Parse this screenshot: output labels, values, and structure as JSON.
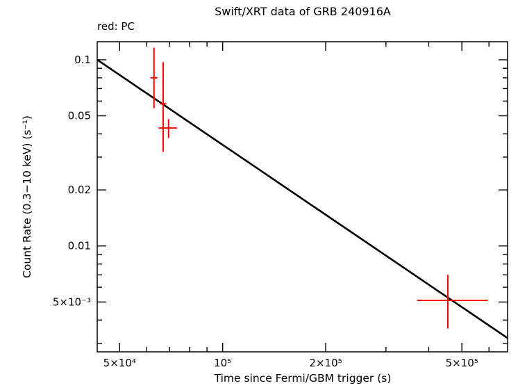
{
  "chart_data": {
    "type": "scatter",
    "title": "Swift/XRT data of GRB 240916A",
    "legend": "red: PC",
    "xlabel": "Time since Fermi/GBM trigger (s)",
    "ylabel": "Count Rate (0.3−10 keV) (s⁻¹)",
    "x_scale": "log",
    "y_scale": "log",
    "xlim": [
      43000,
      680000
    ],
    "ylim": [
      0.0027,
      0.125
    ],
    "grid": false,
    "legend_position": "top-left",
    "colors": {
      "data": "#ff0000",
      "fit": "#000000",
      "frame": "#000000"
    },
    "x_ticks": [
      {
        "value": 50000,
        "label": "5×10⁴"
      },
      {
        "value": 100000,
        "label": "10⁵"
      },
      {
        "value": 200000,
        "label": "2×10⁵"
      },
      {
        "value": 500000,
        "label": "5×10⁵"
      }
    ],
    "y_ticks": [
      {
        "value": 0.1,
        "label": "0.1"
      },
      {
        "value": 0.05,
        "label": "0.05"
      },
      {
        "value": 0.02,
        "label": "0.02"
      },
      {
        "value": 0.01,
        "label": "0.01"
      },
      {
        "value": 0.005,
        "label": "5×10⁻³"
      }
    ],
    "series": [
      {
        "name": "PC",
        "color": "#ff0000",
        "points": [
          {
            "x": 63000,
            "x_lo": 61500,
            "x_hi": 64500,
            "y": 0.08,
            "y_lo": 0.055,
            "y_hi": 0.116
          },
          {
            "x": 67000,
            "x_lo": 65500,
            "x_hi": 68500,
            "y": 0.058,
            "y_lo": 0.032,
            "y_hi": 0.097
          },
          {
            "x": 69500,
            "x_lo": 65000,
            "x_hi": 73500,
            "y": 0.043,
            "y_lo": 0.038,
            "y_hi": 0.048
          },
          {
            "x": 455000,
            "x_lo": 370000,
            "x_hi": 595000,
            "y": 0.0051,
            "y_lo": 0.0036,
            "y_hi": 0.007
          }
        ]
      }
    ],
    "fit_line": {
      "name": "power-law fit",
      "color": "#000000",
      "x1": 43000,
      "y1": 0.1,
      "x2": 680000,
      "y2": 0.0032
    }
  }
}
